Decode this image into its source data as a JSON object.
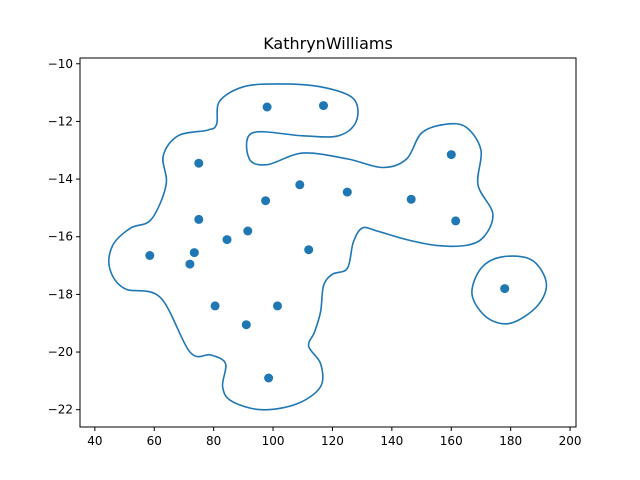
{
  "chart_data": {
    "type": "scatter",
    "title": "KathrynWilliams",
    "xlabel": "",
    "ylabel": "",
    "xlim": [
      35,
      202
    ],
    "ylim": [
      -22.6,
      -9.8
    ],
    "xticks": [
      40,
      60,
      80,
      100,
      120,
      140,
      160,
      180,
      200
    ],
    "yticks": [
      -22,
      -20,
      -18,
      -16,
      -14,
      -12,
      -10
    ],
    "grid": false,
    "legend": "none",
    "color": "#1f77b4",
    "points": [
      {
        "x": 98,
        "y": -11.5
      },
      {
        "x": 117,
        "y": -11.45
      },
      {
        "x": 75,
        "y": -13.45
      },
      {
        "x": 160,
        "y": -13.15
      },
      {
        "x": 109,
        "y": -14.2
      },
      {
        "x": 125,
        "y": -14.45
      },
      {
        "x": 97.5,
        "y": -14.75
      },
      {
        "x": 146.5,
        "y": -14.7
      },
      {
        "x": 75,
        "y": -15.4
      },
      {
        "x": 161.5,
        "y": -15.45
      },
      {
        "x": 91.5,
        "y": -15.8
      },
      {
        "x": 84.5,
        "y": -16.1
      },
      {
        "x": 112,
        "y": -16.45
      },
      {
        "x": 73.5,
        "y": -16.55
      },
      {
        "x": 58.5,
        "y": -16.65
      },
      {
        "x": 72,
        "y": -16.95
      },
      {
        "x": 178,
        "y": -17.8
      },
      {
        "x": 80.5,
        "y": -18.4
      },
      {
        "x": 101.5,
        "y": -18.4
      },
      {
        "x": 91,
        "y": -19.05
      },
      {
        "x": 98.5,
        "y": -20.9
      }
    ],
    "contours": [
      [
        [
          72,
          -20
        ],
        [
          62,
          -18.1
        ],
        [
          50,
          -17.8
        ],
        [
          45,
          -17.1
        ],
        [
          46,
          -16.3
        ],
        [
          52,
          -15.7
        ],
        [
          59,
          -15.4
        ],
        [
          64,
          -14.2
        ],
        [
          63,
          -13.2
        ],
        [
          68,
          -12.5
        ],
        [
          78,
          -12.3
        ],
        [
          81,
          -12.1
        ],
        [
          82,
          -11.3
        ],
        [
          90,
          -10.8
        ],
        [
          102,
          -10.7
        ],
        [
          116,
          -10.8
        ],
        [
          127,
          -11.2
        ],
        [
          128,
          -12.0
        ],
        [
          122,
          -12.5
        ],
        [
          110,
          -12.5
        ],
        [
          93,
          -12.4
        ],
        [
          92,
          -13.3
        ],
        [
          98,
          -13.5
        ],
        [
          110,
          -13.1
        ],
        [
          125,
          -13.3
        ],
        [
          137,
          -13.6
        ],
        [
          145,
          -13.3
        ],
        [
          150,
          -12.4
        ],
        [
          158,
          -12.1
        ],
        [
          165,
          -12.2
        ],
        [
          170,
          -13.0
        ],
        [
          169,
          -14.2
        ],
        [
          174,
          -15.2
        ],
        [
          171,
          -16.0
        ],
        [
          165,
          -16.3
        ],
        [
          155,
          -16.3
        ],
        [
          145,
          -16.1
        ],
        [
          135,
          -15.8
        ],
        [
          130,
          -15.7
        ],
        [
          127,
          -16.2
        ],
        [
          125,
          -17.1
        ],
        [
          120,
          -17.3
        ],
        [
          117,
          -17.7
        ],
        [
          116,
          -18.6
        ],
        [
          114,
          -19.3
        ],
        [
          112,
          -19.8
        ],
        [
          116,
          -20.4
        ],
        [
          116,
          -21.2
        ],
        [
          108,
          -21.8
        ],
        [
          96,
          -22.0
        ],
        [
          86,
          -21.7
        ],
        [
          83,
          -21.2
        ],
        [
          84,
          -20.4
        ],
        [
          79,
          -20.1
        ],
        [
          72,
          -20.0
        ]
      ],
      [
        [
          177,
          -16.7
        ],
        [
          187,
          -16.8
        ],
        [
          192,
          -17.6
        ],
        [
          189,
          -18.4
        ],
        [
          180,
          -19.0
        ],
        [
          172,
          -18.8
        ],
        [
          167,
          -18.0
        ],
        [
          170,
          -17.1
        ],
        [
          177,
          -16.7
        ]
      ]
    ]
  }
}
